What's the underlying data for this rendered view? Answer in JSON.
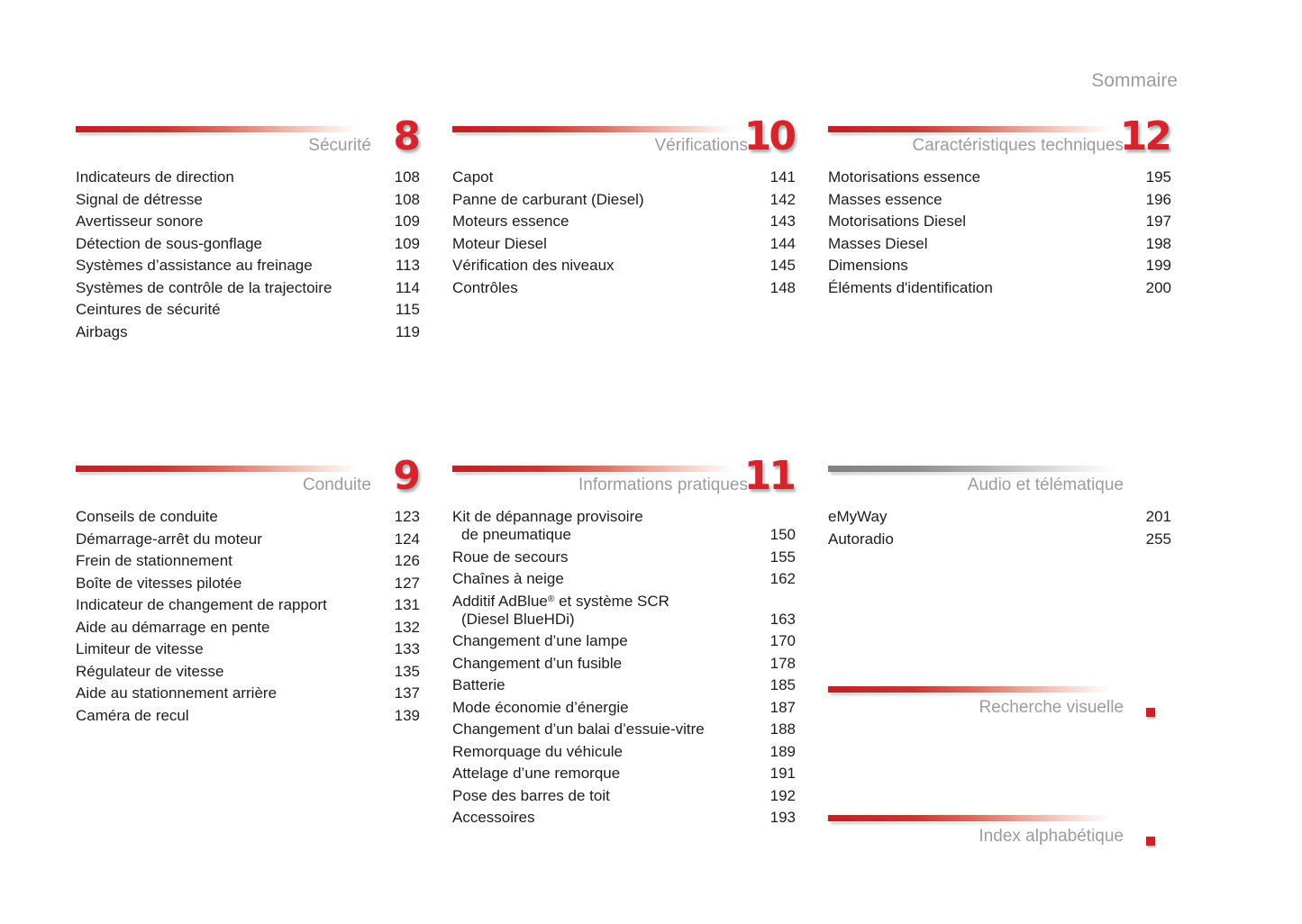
{
  "page_title": "Sommaire",
  "colors": {
    "accent_red": "#d7232b",
    "bar_red_start": "#c51e24",
    "bar_gray_start": "#828282",
    "header_gray": "#9c9c9c",
    "text": "#1d1d1d"
  },
  "sections": {
    "securite": {
      "title": "Sécurité",
      "number": "8",
      "items": [
        {
          "label": "Indicateurs de direction",
          "page": "108"
        },
        {
          "label": "Signal de détresse",
          "page": "108"
        },
        {
          "label": "Avertisseur sonore",
          "page": "109"
        },
        {
          "label": "Détection de sous-gonflage",
          "page": "109"
        },
        {
          "label": "Systèmes d’assistance au freinage",
          "page": "113"
        },
        {
          "label": "Systèmes de contrôle de la trajectoire",
          "page": "114"
        },
        {
          "label": "Ceintures de sécurité",
          "page": "115"
        },
        {
          "label": "Airbags",
          "page": "119"
        }
      ]
    },
    "verifications": {
      "title": "Vérifications",
      "number": "10",
      "items": [
        {
          "label": "Capot",
          "page": "141"
        },
        {
          "label": "Panne de carburant (Diesel)",
          "page": "142"
        },
        {
          "label": "Moteurs essence",
          "page": "143"
        },
        {
          "label": "Moteur Diesel",
          "page": "144"
        },
        {
          "label": "Vérification des niveaux",
          "page": "145"
        },
        {
          "label": "Contrôles",
          "page": "148"
        }
      ]
    },
    "caracteristiques": {
      "title": "Caractéristiques techniques",
      "number": "12",
      "items": [
        {
          "label": "Motorisations essence",
          "page": "195"
        },
        {
          "label": "Masses essence",
          "page": "196"
        },
        {
          "label": "Motorisations Diesel",
          "page": "197"
        },
        {
          "label": "Masses Diesel",
          "page": "198"
        },
        {
          "label": "Dimensions",
          "page": "199"
        },
        {
          "label": "Éléments d'identification",
          "page": "200"
        }
      ]
    },
    "conduite": {
      "title": "Conduite",
      "number": "9",
      "items": [
        {
          "label": "Conseils de conduite",
          "page": "123"
        },
        {
          "label": "Démarrage-arrêt du moteur",
          "page": "124"
        },
        {
          "label": "Frein de stationnement",
          "page": "126"
        },
        {
          "label": "Boîte de vitesses pilotée",
          "page": "127"
        },
        {
          "label": "Indicateur de changement de rapport",
          "page": "131"
        },
        {
          "label": "Aide au démarrage en pente",
          "page": "132"
        },
        {
          "label": "Limiteur de vitesse",
          "page": "133"
        },
        {
          "label": "Régulateur de vitesse",
          "page": "135"
        },
        {
          "label": "Aide au stationnement arrière",
          "page": "137"
        },
        {
          "label": "Caméra de recul",
          "page": "139"
        }
      ]
    },
    "informations": {
      "title": "Informations pratiques",
      "number": "11",
      "items": [
        {
          "label": "Kit de dépannage provisoire",
          "label2": "de pneumatique",
          "page": "150"
        },
        {
          "label": "Roue de secours",
          "page": "155"
        },
        {
          "label": "Chaînes à neige",
          "page": "162"
        },
        {
          "label": "Additif AdBlue® et système SCR",
          "label2": "(Diesel BlueHDi)",
          "page": "163"
        },
        {
          "label": "Changement d’une lampe",
          "page": "170"
        },
        {
          "label": "Changement d’un fusible",
          "page": "178"
        },
        {
          "label": "Batterie",
          "page": "185"
        },
        {
          "label": "Mode économie d’énergie",
          "page": "187"
        },
        {
          "label": "Changement d’un balai d’essuie-vitre",
          "page": "188"
        },
        {
          "label": "Remorquage du véhicule",
          "page": "189"
        },
        {
          "label": "Attelage d’une remorque",
          "page": "191"
        },
        {
          "label": "Pose des barres de toit",
          "page": "192"
        },
        {
          "label": "Accessoires",
          "page": "193"
        }
      ]
    },
    "audio": {
      "title": "Audio et télématique",
      "items": [
        {
          "label": "eMyWay",
          "page": "201"
        },
        {
          "label": "Autoradio",
          "page": "255"
        }
      ]
    },
    "recherche": {
      "title": "Recherche visuelle"
    },
    "index": {
      "title": "Index alphabétique"
    }
  }
}
